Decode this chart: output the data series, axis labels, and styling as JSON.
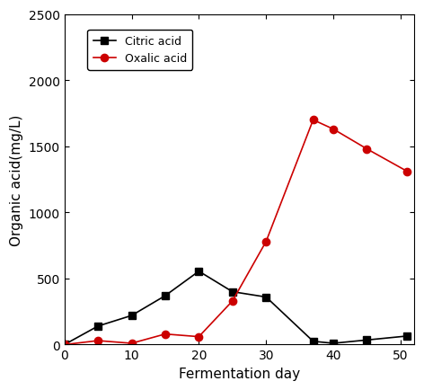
{
  "citric_acid_x": [
    0,
    5,
    10,
    15,
    20,
    25,
    30,
    37,
    40,
    45,
    51
  ],
  "citric_acid_y": [
    0,
    140,
    220,
    370,
    555,
    400,
    360,
    25,
    10,
    35,
    65
  ],
  "oxalic_acid_x": [
    0,
    5,
    10,
    15,
    20,
    25,
    30,
    37,
    40,
    45,
    51
  ],
  "oxalic_acid_y": [
    0,
    30,
    10,
    80,
    60,
    330,
    780,
    1700,
    1630,
    1480,
    1310
  ],
  "citric_label": "Citric acid",
  "oxalic_label": "Oxalic acid",
  "xlabel": "Fermentation day",
  "ylabel": "Organic acid(mg/L)",
  "xlim": [
    0,
    52
  ],
  "ylim": [
    0,
    2500
  ],
  "yticks": [
    0,
    500,
    1000,
    1500,
    2000,
    2500
  ],
  "xticks": [
    0,
    10,
    20,
    30,
    40,
    50
  ],
  "citric_color": "#000000",
  "oxalic_color": "#cc0000",
  "marker_citric": "s",
  "marker_oxalic": "o",
  "linewidth": 1.2,
  "markersize": 6,
  "legend_fontsize": 9,
  "axis_label_fontsize": 11,
  "tick_fontsize": 10
}
